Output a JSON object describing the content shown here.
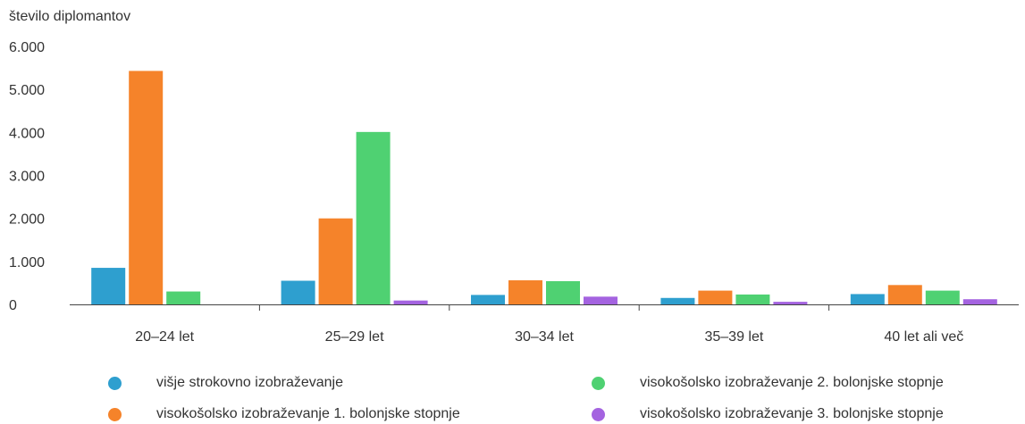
{
  "chart_data": {
    "type": "bar",
    "ylabel": "število diplomantov",
    "ylim": [
      0,
      6000
    ],
    "yticks": [
      "0",
      "1.000",
      "2.000",
      "3.000",
      "4.000",
      "5.000",
      "6.000"
    ],
    "categories": [
      "20–24 let",
      "25–29 let",
      "30–34 let",
      "35–39 let",
      "40 let ali več"
    ],
    "series": [
      {
        "name": "višje strokovno izobraževanje",
        "color": "#2E9FCF",
        "values": [
          850,
          550,
          220,
          150,
          240
        ]
      },
      {
        "name": "visokošolsko izobraževanje 1. bolonjske stopnje",
        "color": "#F5832A",
        "values": [
          5430,
          2000,
          560,
          320,
          450
        ]
      },
      {
        "name": "visokošolsko izobraževanje 2. bolonjske stopnje",
        "color": "#4FD172",
        "values": [
          300,
          4010,
          540,
          230,
          320
        ]
      },
      {
        "name": "visokošolsko izobraževanje 3. bolonjske stopnje",
        "color": "#A463E0",
        "values": [
          0,
          90,
          180,
          60,
          120
        ]
      }
    ],
    "grid": false,
    "legend_position": "bottom"
  }
}
